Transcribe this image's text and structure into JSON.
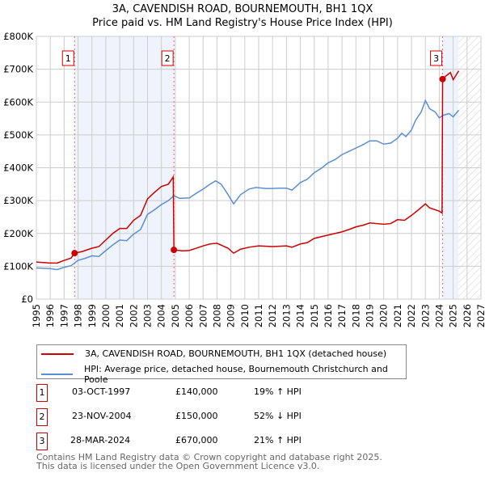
{
  "chart_data": {
    "type": "line",
    "title": "3A, CAVENDISH ROAD, BOURNEMOUTH, BH1 1QX",
    "subtitle": "Price paid vs. HM Land Registry's House Price Index (HPI)",
    "xlim": [
      1995,
      2027
    ],
    "ylim": [
      0,
      800000
    ],
    "x_ticks": [
      "1995",
      "1996",
      "1997",
      "1998",
      "1999",
      "2000",
      "2001",
      "2002",
      "2003",
      "2004",
      "2005",
      "2006",
      "2007",
      "2008",
      "2009",
      "2010",
      "2011",
      "2012",
      "2013",
      "2014",
      "2015",
      "2016",
      "2017",
      "2018",
      "2019",
      "2020",
      "2021",
      "2022",
      "2023",
      "2024",
      "2025",
      "2026",
      "2027"
    ],
    "y_ticks": [
      {
        "v": 0,
        "label": "£0"
      },
      {
        "v": 100000,
        "label": "£100K"
      },
      {
        "v": 200000,
        "label": "£200K"
      },
      {
        "v": 300000,
        "label": "£300K"
      },
      {
        "v": 400000,
        "label": "£400K"
      },
      {
        "v": 500000,
        "label": "£500K"
      },
      {
        "v": 600000,
        "label": "£600K"
      },
      {
        "v": 700000,
        "label": "£700K"
      },
      {
        "v": 800000,
        "label": "£800K"
      }
    ],
    "grid": true,
    "shaded_periods": [
      [
        1997.75,
        2004.9
      ],
      [
        2024.24,
        2025.4
      ]
    ],
    "forecast_hatch_from": 2025.4,
    "series": [
      {
        "name": "3A, CAVENDISH ROAD, BOURNEMOUTH, BH1 1QX (detached house)",
        "color": "#cc0000",
        "points": [
          [
            1995,
            113
          ],
          [
            1996,
            110
          ],
          [
            1996.5,
            110
          ],
          [
            1997,
            118
          ],
          [
            1997.5,
            125
          ],
          [
            1997.75,
            140
          ],
          [
            1998.3,
            145
          ],
          [
            1999,
            155
          ],
          [
            1999.5,
            160
          ],
          [
            2000,
            180
          ],
          [
            2000.5,
            200
          ],
          [
            2001,
            215
          ],
          [
            2001.5,
            215
          ],
          [
            2002,
            240
          ],
          [
            2002.5,
            255
          ],
          [
            2003,
            305
          ],
          [
            2003.5,
            325
          ],
          [
            2004,
            343
          ],
          [
            2004.5,
            350
          ],
          [
            2004.85,
            372
          ],
          [
            2004.9,
            150
          ],
          [
            2005.5,
            147
          ],
          [
            2006,
            148
          ],
          [
            2006.5,
            155
          ],
          [
            2007,
            162
          ],
          [
            2007.5,
            168
          ],
          [
            2008,
            170
          ],
          [
            2008.8,
            155
          ],
          [
            2009.2,
            140
          ],
          [
            2009.7,
            152
          ],
          [
            2010.3,
            158
          ],
          [
            2011,
            162
          ],
          [
            2012,
            160
          ],
          [
            2013,
            162
          ],
          [
            2013.4,
            158
          ],
          [
            2014,
            168
          ],
          [
            2014.5,
            172
          ],
          [
            2015,
            185
          ],
          [
            2016,
            195
          ],
          [
            2017,
            205
          ],
          [
            2017.5,
            212
          ],
          [
            2018,
            220
          ],
          [
            2018.5,
            225
          ],
          [
            2019,
            232
          ],
          [
            2019.5,
            230
          ],
          [
            2020,
            228
          ],
          [
            2020.5,
            230
          ],
          [
            2021,
            242
          ],
          [
            2021.5,
            240
          ],
          [
            2022,
            255
          ],
          [
            2022.5,
            272
          ],
          [
            2023,
            290
          ],
          [
            2023.3,
            278
          ],
          [
            2024,
            268
          ],
          [
            2024.2,
            262
          ],
          [
            2024.24,
            670
          ],
          [
            2024.5,
            680
          ],
          [
            2024.8,
            690
          ],
          [
            2025,
            668
          ],
          [
            2025.4,
            695
          ]
        ]
      },
      {
        "name": "HPI: Average price, detached house, Bournemouth Christchurch and Poole",
        "color": "#5b8fd0",
        "points": [
          [
            1995,
            95
          ],
          [
            1996,
            93
          ],
          [
            1996.5,
            90
          ],
          [
            1997,
            97
          ],
          [
            1997.5,
            102
          ],
          [
            1998,
            118
          ],
          [
            1998.5,
            124
          ],
          [
            1999,
            132
          ],
          [
            1999.5,
            130
          ],
          [
            2000,
            148
          ],
          [
            2000.5,
            165
          ],
          [
            2001,
            180
          ],
          [
            2001.5,
            178
          ],
          [
            2002,
            198
          ],
          [
            2002.5,
            212
          ],
          [
            2003,
            258
          ],
          [
            2003.5,
            272
          ],
          [
            2004,
            288
          ],
          [
            2004.5,
            300
          ],
          [
            2004.9,
            315
          ],
          [
            2005.3,
            307
          ],
          [
            2006,
            308
          ],
          [
            2006.5,
            322
          ],
          [
            2007,
            335
          ],
          [
            2007.5,
            350
          ],
          [
            2007.9,
            360
          ],
          [
            2008.3,
            350
          ],
          [
            2008.8,
            318
          ],
          [
            2009.2,
            290
          ],
          [
            2009.7,
            318
          ],
          [
            2010.3,
            335
          ],
          [
            2010.8,
            340
          ],
          [
            2011.5,
            337
          ],
          [
            2012,
            337
          ],
          [
            2012.5,
            338
          ],
          [
            2013,
            338
          ],
          [
            2013.4,
            332
          ],
          [
            2014,
            355
          ],
          [
            2014.5,
            365
          ],
          [
            2015,
            385
          ],
          [
            2015.5,
            398
          ],
          [
            2016,
            415
          ],
          [
            2016.5,
            425
          ],
          [
            2017,
            440
          ],
          [
            2017.5,
            450
          ],
          [
            2018,
            460
          ],
          [
            2018.5,
            470
          ],
          [
            2019,
            482
          ],
          [
            2019.5,
            482
          ],
          [
            2020,
            472
          ],
          [
            2020.5,
            475
          ],
          [
            2021,
            490
          ],
          [
            2021.3,
            505
          ],
          [
            2021.6,
            495
          ],
          [
            2022,
            515
          ],
          [
            2022.3,
            545
          ],
          [
            2022.7,
            570
          ],
          [
            2023,
            605
          ],
          [
            2023.3,
            580
          ],
          [
            2023.7,
            570
          ],
          [
            2024,
            552
          ],
          [
            2024.3,
            560
          ],
          [
            2024.7,
            565
          ],
          [
            2025,
            555
          ],
          [
            2025.4,
            575
          ]
        ]
      }
    ],
    "units_note": "series values in £ thousands",
    "sales": [
      {
        "id": "1",
        "x": 1997.75,
        "value": 140000,
        "date": "03-OCT-1997",
        "price": "£140,000",
        "hpi": "19% ↑ HPI"
      },
      {
        "id": "2",
        "x": 2004.9,
        "value": 150000,
        "date": "23-NOV-2004",
        "price": "£150,000",
        "hpi": "52% ↓ HPI"
      },
      {
        "id": "3",
        "x": 2024.24,
        "value": 670000,
        "date": "28-MAR-2024",
        "price": "£670,000",
        "hpi": "21% ↑ HPI"
      }
    ]
  },
  "legend": {
    "red": "3A, CAVENDISH ROAD, BOURNEMOUTH, BH1 1QX (detached house)",
    "blue": "HPI: Average price, detached house, Bournemouth Christchurch and Poole"
  },
  "footer": {
    "line1": "Contains HM Land Registry data © Crown copyright and database right 2025.",
    "line2": "This data is licensed under the Open Government Licence v3.0."
  }
}
